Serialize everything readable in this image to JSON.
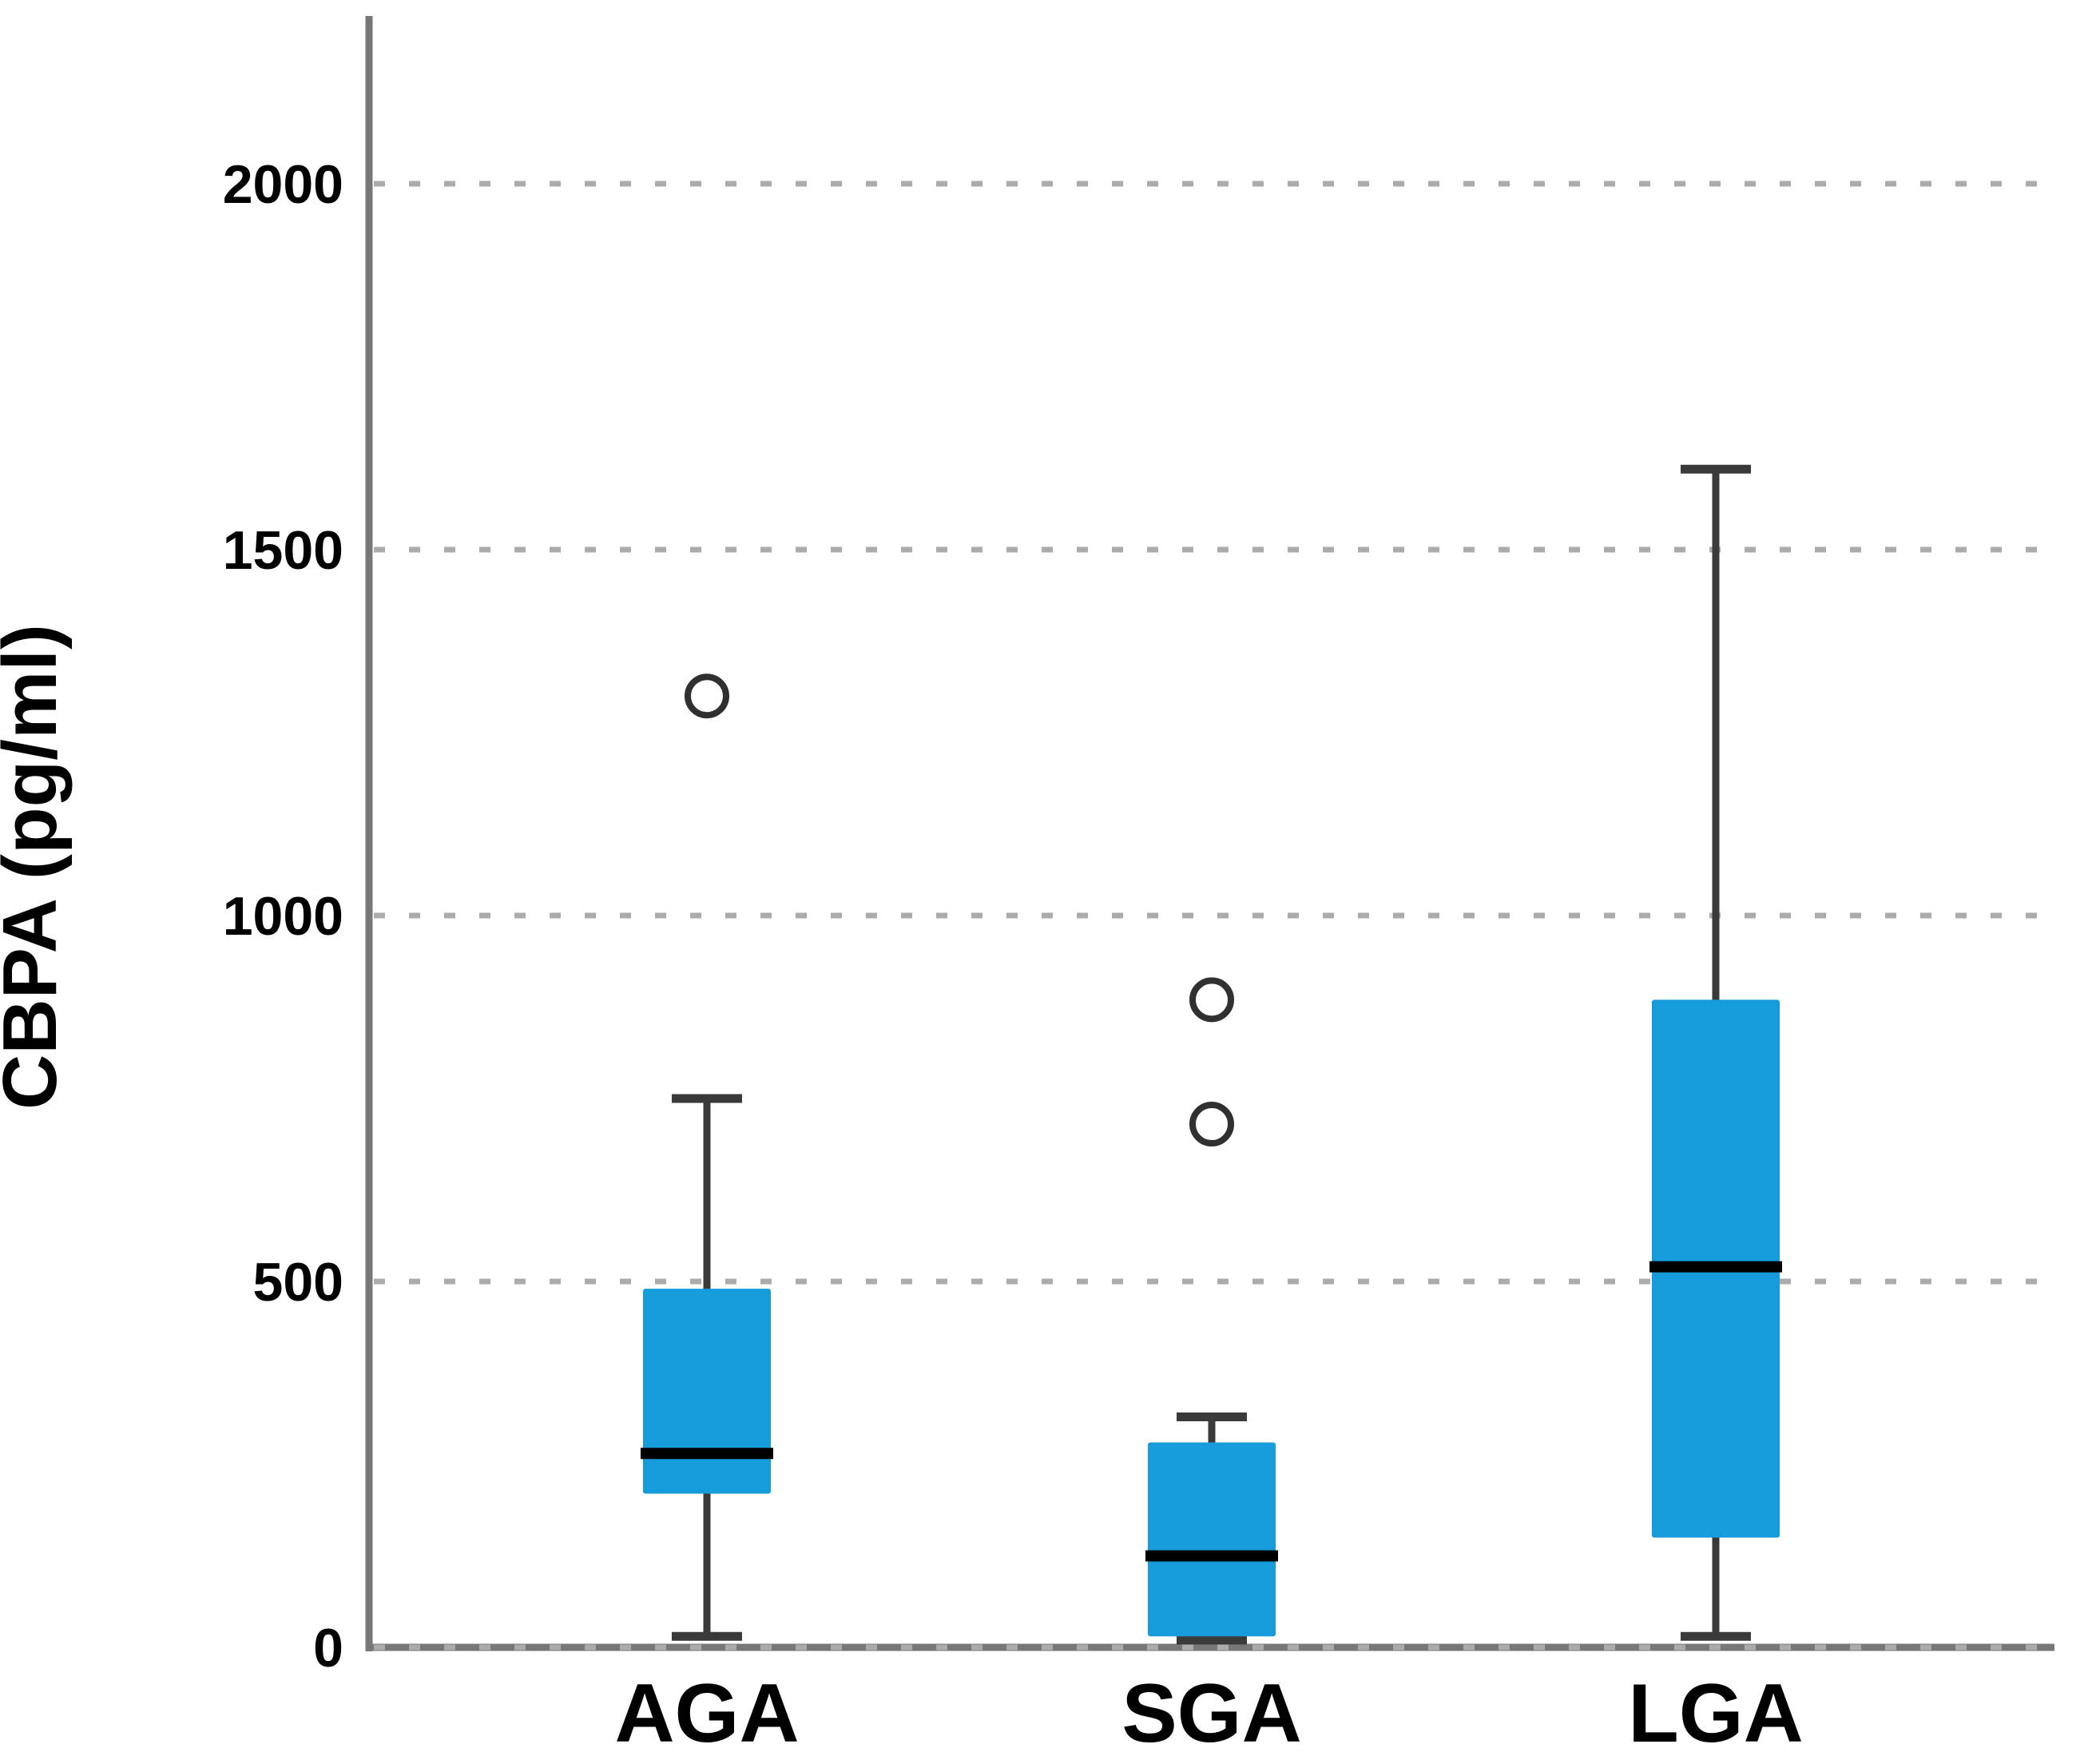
{
  "chart_data": {
    "type": "box",
    "title": "",
    "ylabel": "CBPA (pg/ml)",
    "xlabel": "",
    "categories": [
      "AGA",
      "SGA",
      "LGA"
    ],
    "y_ticks": [
      0,
      500,
      1000,
      1500,
      2000
    ],
    "ylim": [
      0,
      2000
    ],
    "grid": "horizontal-dotted",
    "legend_position": "none",
    "series": [
      {
        "name": "AGA",
        "min": 15,
        "q1": 210,
        "median": 265,
        "q3": 490,
        "max": 750,
        "outliers": [
          1300
        ]
      },
      {
        "name": "SGA",
        "min": 10,
        "q1": 15,
        "median": 125,
        "q3": 280,
        "max": 315,
        "outliers": [
          715,
          885
        ]
      },
      {
        "name": "LGA",
        "min": 15,
        "q1": 150,
        "median": 520,
        "q3": 885,
        "max": 1610,
        "outliers": []
      }
    ],
    "colors": {
      "box_fill": "#169CDB",
      "median": "#000000",
      "whisker": "#3A3A3A",
      "outlier_stroke": "#303030",
      "gridline": "#ABABAB",
      "axis": "#787878",
      "text": "#000000"
    }
  }
}
